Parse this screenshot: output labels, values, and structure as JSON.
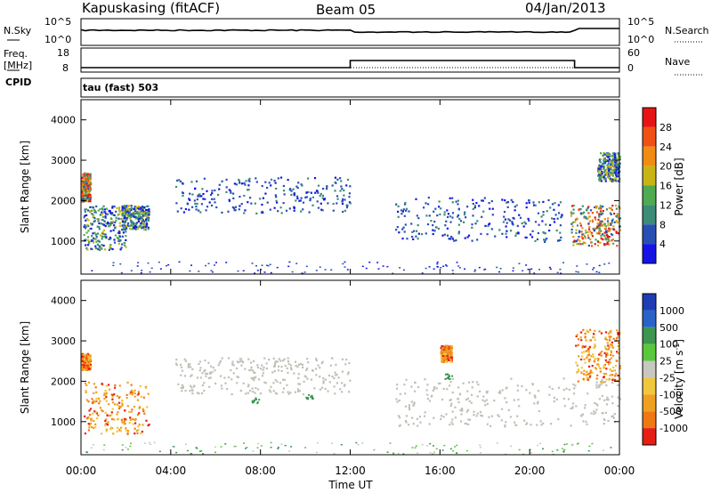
{
  "header": {
    "station": "Kapuskasing (fitACF)",
    "beam": "Beam 05",
    "date": "04/Jan/2013"
  },
  "noise_panel": {
    "left_label": "N.Sky",
    "left_ticks": [
      "10^5",
      "10^0"
    ],
    "right_label": "N.Search",
    "right_ticks": [
      "10^5",
      "10^0"
    ]
  },
  "freq_panel": {
    "left_label_1": "Freq.",
    "left_label_2": "[MHz]",
    "left_ticks": [
      "18",
      "8"
    ],
    "right_label": "Nave",
    "right_ticks": [
      "60",
      "0"
    ]
  },
  "cpid": {
    "label": "CPID",
    "value": "tau (fast) 503"
  },
  "axes": {
    "ylabel": "Slant Range [km]",
    "xlabel": "Time UT",
    "y_ticks": [
      "1000",
      "2000",
      "3000",
      "4000"
    ],
    "x_ticks": [
      "00:00",
      "04:00",
      "08:00",
      "12:00",
      "16:00",
      "20:00",
      "00:00"
    ]
  },
  "power_colorbar": {
    "label": "Power [dB]",
    "ticks": [
      "4",
      "8",
      "12",
      "16",
      "20",
      "24",
      "28"
    ],
    "colors": [
      "#1414e6",
      "#2850b4",
      "#3c8c78",
      "#50aa50",
      "#c8b414",
      "#f08c14",
      "#f05014",
      "#e61414"
    ]
  },
  "velocity_colorbar": {
    "label": "Velocity [m s",
    "label_sup": "-1",
    "label_end": "]",
    "ticks": [
      "1000",
      "500",
      "100",
      "25",
      "-25",
      "-100",
      "-500",
      "-1000"
    ],
    "colors": [
      "#1e3cb4",
      "#2864c8",
      "#3c9650",
      "#5ac83c",
      "#c8c8c0",
      "#f0c83c",
      "#f0a020",
      "#f07814",
      "#e61e14"
    ]
  },
  "chart_data": {
    "type": "heatmap",
    "x_range_hours": [
      0,
      24
    ],
    "y_range_km": [
      180,
      4500
    ],
    "ground_scatter_color": "#c0c0b8",
    "power_regions": [
      {
        "t": [
          0.0,
          0.4
        ],
        "r": [
          2000,
          2700
        ],
        "level": "high"
      },
      {
        "t": [
          0.1,
          2.0
        ],
        "r": [
          800,
          1900
        ],
        "level": "mid"
      },
      {
        "t": [
          1.8,
          3.0
        ],
        "r": [
          1300,
          1900
        ],
        "level": "mid"
      },
      {
        "t": [
          4.2,
          12.0
        ],
        "r": [
          1700,
          2600
        ],
        "level": "low"
      },
      {
        "t": [
          14.0,
          21.5
        ],
        "r": [
          1000,
          2100
        ],
        "level": "low"
      },
      {
        "t": [
          21.8,
          24.0
        ],
        "r": [
          900,
          1900
        ],
        "level": "high"
      },
      {
        "t": [
          23.0,
          24.0
        ],
        "r": [
          2500,
          3200
        ],
        "level": "mid"
      }
    ],
    "velocity_regions": [
      {
        "t": [
          0.0,
          0.4
        ],
        "r": [
          2300,
          2700
        ],
        "class": "neg"
      },
      {
        "t": [
          0.1,
          3.0
        ],
        "r": [
          700,
          2000
        ],
        "class": "neg"
      },
      {
        "t": [
          4.2,
          12.0
        ],
        "r": [
          1700,
          2600
        ],
        "class": "ground"
      },
      {
        "t": [
          14.0,
          24.0
        ],
        "r": [
          900,
          2100
        ],
        "class": "ground"
      },
      {
        "t": [
          16.0,
          16.5
        ],
        "r": [
          2500,
          2900
        ],
        "class": "neg"
      },
      {
        "t": [
          22.0,
          24.0
        ],
        "r": [
          2000,
          3300
        ],
        "class": "neg"
      }
    ],
    "frequency_mhz": [
      {
        "t": [
          0.0,
          12.0
        ],
        "value": 10.5
      },
      {
        "t": [
          12.0,
          22.0
        ],
        "value": 14.5
      },
      {
        "t": [
          22.0,
          24.0
        ],
        "value": 10.5
      }
    ]
  }
}
